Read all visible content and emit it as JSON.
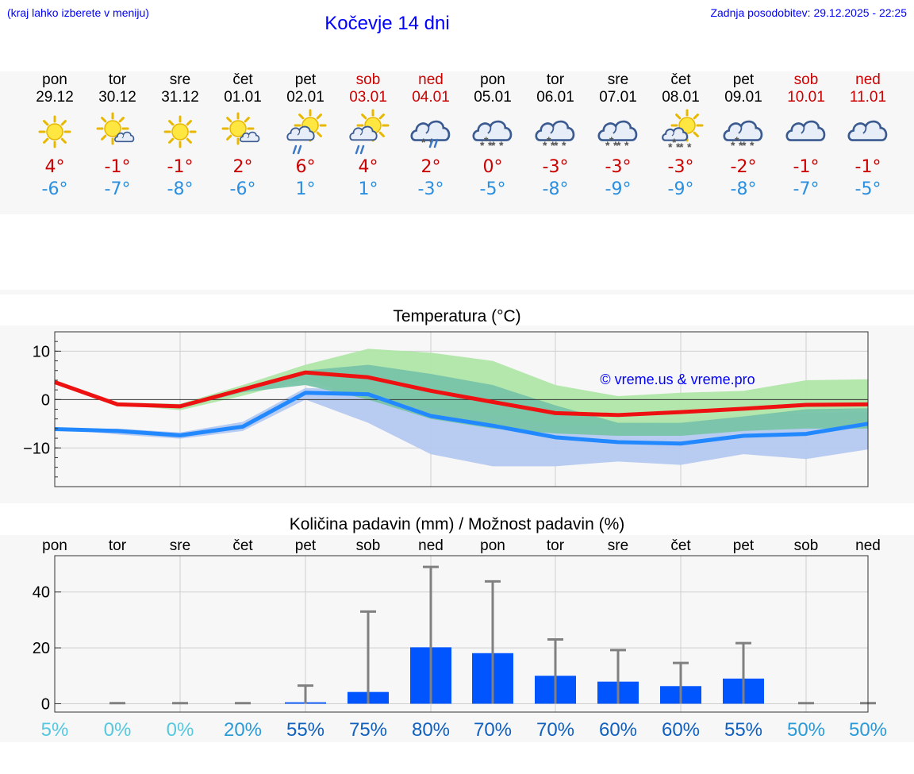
{
  "header": {
    "menu_hint": "(kraj lahko izberete v meniju)",
    "title": "Kočevje 14 dni",
    "last_update": "Zadnja posodobitev: 29.12.2025 - 22:25"
  },
  "days": [
    {
      "name": "pon",
      "date": "29.12",
      "weekend": false,
      "icon": "sun-icon",
      "tmax": "4°",
      "tmin": "-6°"
    },
    {
      "name": "tor",
      "date": "30.12",
      "weekend": false,
      "icon": "sun-cloud-icon",
      "tmax": "-1°",
      "tmin": "-7°"
    },
    {
      "name": "sre",
      "date": "31.12",
      "weekend": false,
      "icon": "sun-icon",
      "tmax": "-1°",
      "tmin": "-8°"
    },
    {
      "name": "čet",
      "date": "01.01",
      "weekend": false,
      "icon": "sun-cloud-icon",
      "tmax": "2°",
      "tmin": "-6°"
    },
    {
      "name": "pet",
      "date": "02.01",
      "weekend": false,
      "icon": "sun-cloud-rain-icon",
      "tmax": "6°",
      "tmin": "1°"
    },
    {
      "name": "sob",
      "date": "03.01",
      "weekend": true,
      "icon": "sun-cloud-rain-icon",
      "tmax": "4°",
      "tmin": "1°"
    },
    {
      "name": "ned",
      "date": "04.01",
      "weekend": true,
      "icon": "cloud-sleet-icon",
      "tmax": "2°",
      "tmin": "-3°"
    },
    {
      "name": "pon",
      "date": "05.01",
      "weekend": false,
      "icon": "cloud-snow-icon",
      "tmax": "0°",
      "tmin": "-5°"
    },
    {
      "name": "tor",
      "date": "06.01",
      "weekend": false,
      "icon": "cloud-snow-icon",
      "tmax": "-3°",
      "tmin": "-8°"
    },
    {
      "name": "sre",
      "date": "07.01",
      "weekend": false,
      "icon": "cloud-snow-icon",
      "tmax": "-3°",
      "tmin": "-9°"
    },
    {
      "name": "čet",
      "date": "08.01",
      "weekend": false,
      "icon": "sun-cloud-snow-icon",
      "tmax": "-3°",
      "tmin": "-9°"
    },
    {
      "name": "pet",
      "date": "09.01",
      "weekend": false,
      "icon": "cloud-snow-icon",
      "tmax": "-2°",
      "tmin": "-8°"
    },
    {
      "name": "sob",
      "date": "10.01",
      "weekend": true,
      "icon": "cloud-icon",
      "tmax": "-1°",
      "tmin": "-7°"
    },
    {
      "name": "ned",
      "date": "11.01",
      "weekend": true,
      "icon": "cloud-icon",
      "tmax": "-1°",
      "tmin": "-5°"
    }
  ],
  "colors": {
    "max_line": "#ee1111",
    "min_line": "#2288ff",
    "max_band": "#b0e6a8",
    "max_band_inner": "#7cd38f",
    "min_band": "#b4c8f0",
    "overlap": "#78c4a8",
    "bar": "#0055ff",
    "whisker": "#808080",
    "prob_low": "#55c8e0",
    "prob_mid": "#2a9ad8",
    "prob_high": "#1060c0"
  },
  "chart_data": [
    {
      "type": "line",
      "title": "Temperatura (°C)",
      "watermark": "© vreme.us & vreme.pro",
      "categories": [
        "29.12",
        "30.12",
        "31.12",
        "01.01",
        "02.01",
        "03.01",
        "04.01",
        "05.01",
        "06.01",
        "07.01",
        "08.01",
        "09.01",
        "10.01",
        "11.01"
      ],
      "ylim": [
        -18,
        14
      ],
      "yticks": [
        -10,
        0,
        10
      ],
      "ytick_labels": [
        "−10",
        "0",
        "10"
      ],
      "x": [
        0,
        1,
        2,
        3,
        4,
        5,
        6,
        7,
        8,
        9,
        10,
        11,
        12,
        13
      ],
      "series": [
        {
          "name": "max",
          "values": [
            3.6,
            -1.0,
            -1.4,
            2.1,
            5.6,
            4.6,
            1.8,
            -0.5,
            -2.8,
            -3.2,
            -2.6,
            -1.9,
            -1.1,
            -1.0
          ],
          "band_low": [
            3.6,
            -1.0,
            -2.2,
            0.8,
            4.2,
            0.0,
            -1.5,
            -3.0,
            -5.5,
            -5.0,
            -5.0,
            -3.5,
            -2.5,
            -2.0
          ],
          "band_high": [
            3.6,
            -0.6,
            -0.9,
            3.0,
            7.2,
            10.5,
            9.7,
            8.0,
            3.0,
            0.7,
            1.4,
            1.8,
            4.0,
            4.2
          ],
          "inner_low": [
            3.6,
            -1.0,
            -1.8,
            1.5,
            3.0,
            0.0,
            -4.0,
            -6.0,
            -7.0,
            -7.5,
            -7.5,
            -6.5,
            -6.0,
            -6.0
          ],
          "inner_high": [
            3.6,
            -0.8,
            -1.2,
            2.5,
            6.0,
            7.2,
            5.3,
            3.0,
            -1.2,
            -4.8,
            -4.8,
            -3.5,
            -2.0,
            -1.8
          ]
        },
        {
          "name": "min",
          "values": [
            -6.1,
            -6.5,
            -7.4,
            -5.6,
            1.4,
            1.1,
            -3.4,
            -5.4,
            -7.8,
            -8.8,
            -9.1,
            -7.5,
            -7.1,
            -5.0
          ],
          "band_low": [
            -6.1,
            -7.2,
            -8.1,
            -6.5,
            0.0,
            -4.8,
            -11.3,
            -13.8,
            -13.8,
            -12.8,
            -13.5,
            -11.3,
            -12.3,
            -10.3
          ],
          "band_high": [
            -6.1,
            -6.0,
            -6.8,
            -4.6,
            2.4,
            2.0,
            -0.5,
            -2.0,
            -4.0,
            -4.5,
            -3.8,
            -3.0,
            -2.8,
            -2.5
          ]
        }
      ]
    },
    {
      "type": "bar",
      "title": "Količina padavin (mm) / Možnost padavin (%)",
      "day_labels": [
        "pon",
        "tor",
        "sre",
        "čet",
        "pet",
        "sob",
        "ned",
        "pon",
        "tor",
        "sre",
        "čet",
        "pet",
        "sob",
        "ned"
      ],
      "ylim": [
        -3,
        53
      ],
      "yticks": [
        0,
        20,
        40
      ],
      "values": [
        0,
        0,
        0,
        0,
        0.5,
        4.2,
        20.2,
        18.1,
        10.0,
        7.9,
        6.3,
        9.0,
        0,
        0
      ],
      "whisker_max": [
        0,
        0.2,
        0.2,
        0.2,
        6.5,
        33.0,
        49.0,
        43.8,
        23.0,
        19.2,
        14.6,
        21.7,
        0.2,
        0.2
      ],
      "probability": [
        "5%",
        "0%",
        "0%",
        "20%",
        "55%",
        "75%",
        "80%",
        "70%",
        "70%",
        "60%",
        "60%",
        "55%",
        "50%",
        "50%"
      ],
      "probability_values": [
        5,
        0,
        0,
        20,
        55,
        75,
        80,
        70,
        70,
        60,
        60,
        55,
        50,
        50
      ]
    }
  ]
}
